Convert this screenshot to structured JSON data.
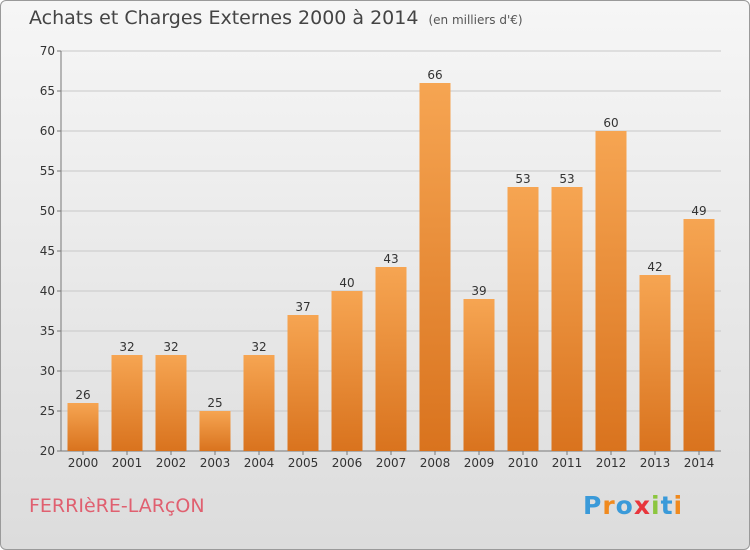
{
  "title": "Achats et Charges Externes 2000 à 2014",
  "subtitle": "(en milliers d'€)",
  "commune": "FERRIèRE-LARçON",
  "brand": {
    "letters": [
      "P",
      "r",
      "o",
      "x",
      "i",
      "t",
      "i"
    ],
    "colors": [
      "#3a9ad9",
      "#f08a1e",
      "#3a9ad9",
      "#e8363c",
      "#8cc63f",
      "#3a9ad9",
      "#f08a1e"
    ]
  },
  "colors": {
    "bar_top": "#f6a552",
    "bar_bottom": "#d9731e",
    "commune": "#e06070"
  },
  "chart_data": {
    "type": "bar",
    "title": "Achats et Charges Externes 2000 à 2014",
    "categories": [
      "2000",
      "2001",
      "2002",
      "2003",
      "2004",
      "2005",
      "2006",
      "2007",
      "2008",
      "2009",
      "2010",
      "2011",
      "2012",
      "2013",
      "2014"
    ],
    "values": [
      26,
      32,
      32,
      25,
      32,
      37,
      40,
      43,
      66,
      39,
      53,
      53,
      60,
      42,
      49
    ],
    "ylim": [
      20,
      70
    ],
    "yticks": [
      20,
      25,
      30,
      35,
      40,
      45,
      50,
      55,
      60,
      65,
      70
    ],
    "grid": true
  }
}
